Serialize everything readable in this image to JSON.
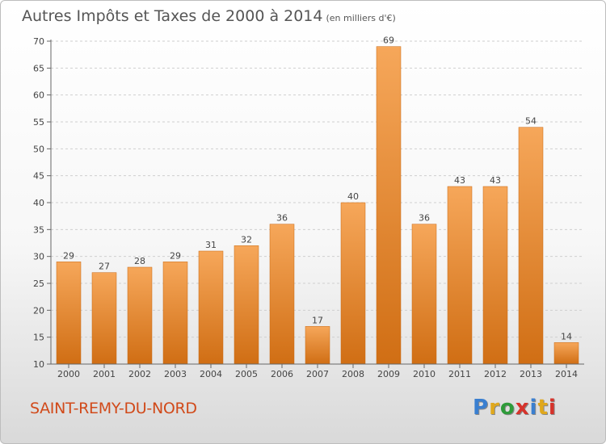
{
  "header": {
    "title": "Autres Impôts et Taxes de 2000 à 2014",
    "unit": "(en milliers d'€)"
  },
  "footer": {
    "commune": "SAINT-REMY-DU-NORD",
    "brand": "Proxiti",
    "brand_colors": [
      "#3a7fd0",
      "#e0a81c",
      "#2e9b3a",
      "#d6332b",
      "#3a7fd0",
      "#e0a81c",
      "#d6332b"
    ]
  },
  "colors": {
    "bar_light": "#f6a75a",
    "bar_dark": "#d06e14",
    "grid": "#cfcfcf",
    "axis": "#666666",
    "text": "#444444"
  },
  "chart_data": {
    "type": "bar",
    "categories": [
      "2000",
      "2001",
      "2002",
      "2003",
      "2004",
      "2005",
      "2006",
      "2007",
      "2008",
      "2009",
      "2010",
      "2011",
      "2012",
      "2013",
      "2014"
    ],
    "values": [
      29,
      27,
      28,
      29,
      31,
      32,
      36,
      17,
      40,
      69,
      36,
      43,
      43,
      54,
      14
    ],
    "data_labels": [
      "29",
      "27",
      "28",
      "29",
      "31",
      "32",
      "36",
      "17",
      "40",
      "69",
      "36",
      "43",
      "43",
      "54",
      "14"
    ],
    "ylim": [
      10,
      70
    ],
    "yticks": [
      10,
      15,
      20,
      25,
      30,
      35,
      40,
      45,
      50,
      55,
      60,
      65,
      70
    ],
    "grid": true,
    "legend": "none"
  }
}
